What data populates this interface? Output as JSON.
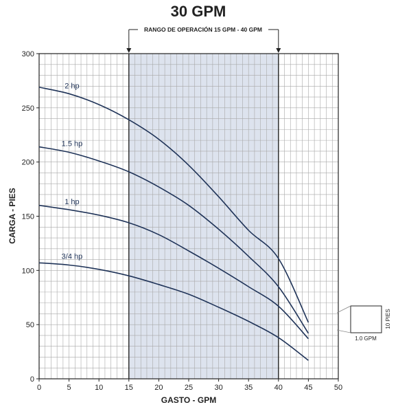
{
  "chart_data": {
    "type": "line",
    "title": "30 GPM",
    "xlabel": "GASTO - GPM",
    "ylabel": "CARGA - PIES",
    "xlim": [
      0,
      50
    ],
    "ylim": [
      0,
      300
    ],
    "x_ticks": [
      "0",
      "5",
      "10",
      "15",
      "20",
      "25",
      "30",
      "35",
      "40",
      "45",
      "50"
    ],
    "y_ticks": [
      "0",
      "50",
      "100",
      "150",
      "200",
      "250",
      "300"
    ],
    "grid": true,
    "operating_range": {
      "label": "RANGO DE OPERACIÓN 15 GPM - 40 GPM",
      "from": 15,
      "to": 40
    },
    "series": [
      {
        "name": "2 hp",
        "x": [
          0,
          5,
          10,
          15,
          20,
          25,
          30,
          35,
          40,
          45
        ],
        "values": [
          269,
          263,
          253,
          239,
          221,
          197,
          168,
          137,
          111,
          52
        ]
      },
      {
        "name": "1.5 hp",
        "x": [
          0,
          5,
          10,
          15,
          20,
          25,
          30,
          35,
          40,
          45
        ],
        "values": [
          214,
          209,
          201,
          191,
          177,
          160,
          138,
          113,
          85,
          42
        ]
      },
      {
        "name": "1 hp",
        "x": [
          0,
          5,
          10,
          15,
          20,
          25,
          30,
          35,
          40,
          45
        ],
        "values": [
          160,
          156,
          151,
          144,
          133,
          118,
          102,
          85,
          67,
          37
        ]
      },
      {
        "name": "3/4 hp",
        "x": [
          0,
          5,
          10,
          15,
          20,
          25,
          30,
          35,
          40,
          45
        ],
        "values": [
          107,
          105,
          101,
          95,
          87,
          78,
          66,
          53,
          38,
          17
        ]
      }
    ],
    "scale_box": {
      "x_label": "1.0 GPM",
      "y_label": "10 PIES"
    }
  },
  "colors": {
    "curve": "#1f3358",
    "range_fill": "#dde3ee",
    "grid": "#a8a8a8",
    "axis": "#222222"
  }
}
